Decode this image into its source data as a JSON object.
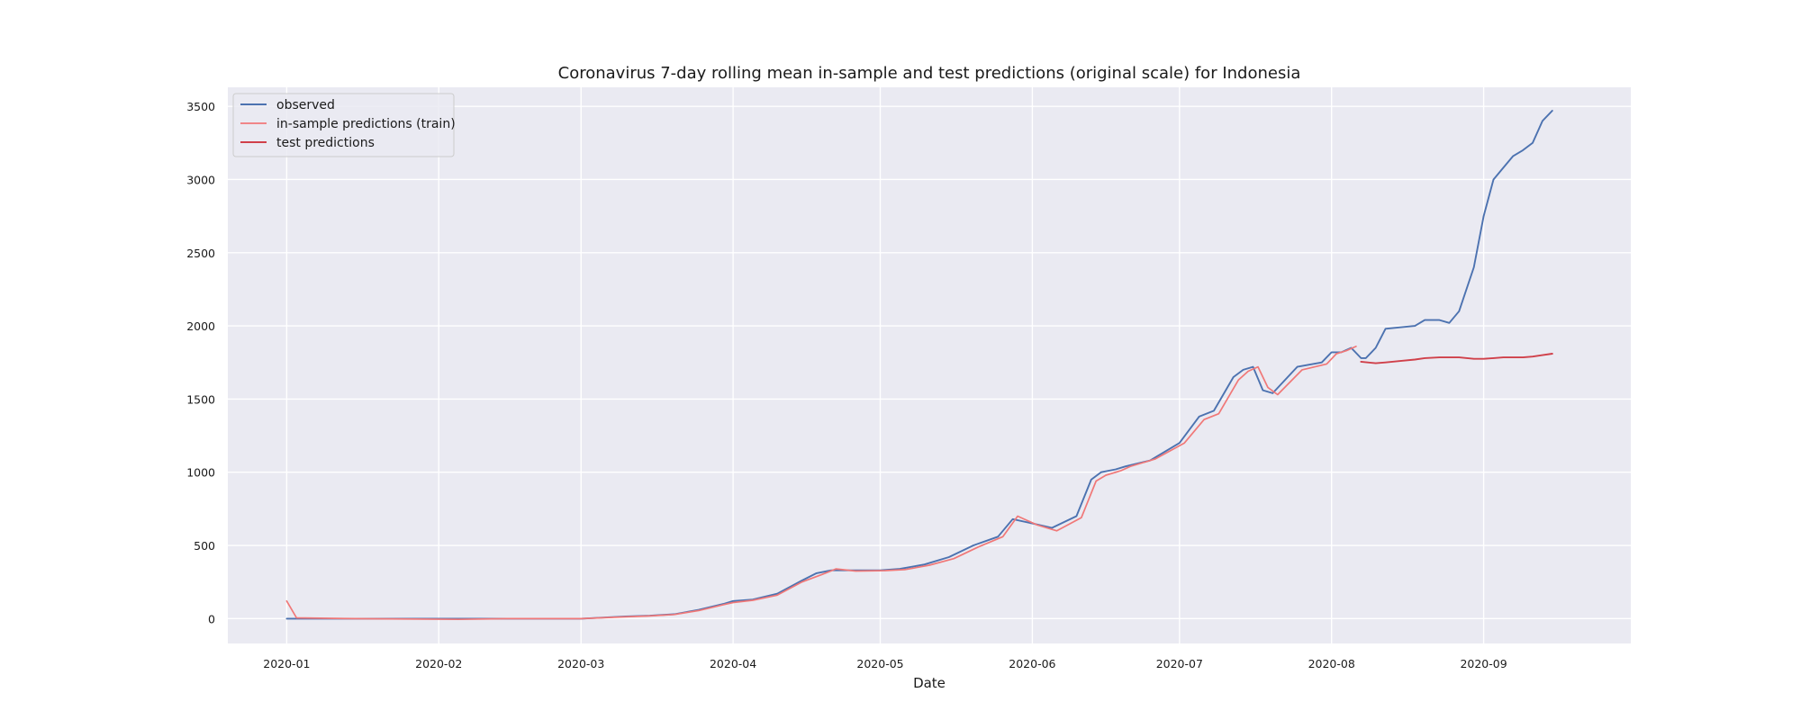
{
  "chart_data": {
    "type": "line",
    "title": "Coronavirus 7-day rolling mean in-sample and test predictions (original scale) for Indonesia",
    "xlabel": "Date",
    "ylabel": "",
    "x_ticks": [
      "2020-01",
      "2020-02",
      "2020-03",
      "2020-04",
      "2020-05",
      "2020-06",
      "2020-07",
      "2020-08",
      "2020-09"
    ],
    "y_ticks": [
      "0",
      "500",
      "1000",
      "1500",
      "2000",
      "2500",
      "3000",
      "3500"
    ],
    "xlim": [
      "2019-12-20",
      "2020-10-01"
    ],
    "ylim": [
      -170,
      3630
    ],
    "grid": true,
    "legend_position": "top-left",
    "colors": {
      "background": "#eaeaf2",
      "grid": "#ffffff",
      "observed": "#4c72b0",
      "train": "#f07878",
      "test": "#d0404a"
    },
    "series": [
      {
        "name": "observed",
        "x": [
          "2020-01-01",
          "2020-01-15",
          "2020-02-01",
          "2020-02-15",
          "2020-03-01",
          "2020-03-10",
          "2020-03-15",
          "2020-03-20",
          "2020-03-25",
          "2020-03-30",
          "2020-04-01",
          "2020-04-05",
          "2020-04-10",
          "2020-04-15",
          "2020-04-18",
          "2020-04-21",
          "2020-04-25",
          "2020-05-01",
          "2020-05-05",
          "2020-05-10",
          "2020-05-15",
          "2020-05-20",
          "2020-05-25",
          "2020-05-28",
          "2020-06-01",
          "2020-06-05",
          "2020-06-10",
          "2020-06-13",
          "2020-06-15",
          "2020-06-18",
          "2020-06-20",
          "2020-06-25",
          "2020-07-01",
          "2020-07-05",
          "2020-07-08",
          "2020-07-12",
          "2020-07-14",
          "2020-07-16",
          "2020-07-18",
          "2020-07-20",
          "2020-07-25",
          "2020-07-30",
          "2020-08-01",
          "2020-08-03",
          "2020-08-05",
          "2020-08-07",
          "2020-08-08",
          "2020-08-10",
          "2020-08-12",
          "2020-08-15",
          "2020-08-18",
          "2020-08-20",
          "2020-08-23",
          "2020-08-25",
          "2020-08-27",
          "2020-08-30",
          "2020-09-01",
          "2020-09-03",
          "2020-09-05",
          "2020-09-07",
          "2020-09-09",
          "2020-09-11",
          "2020-09-13",
          "2020-09-15"
        ],
        "y": [
          0,
          0,
          0,
          0,
          0,
          15,
          20,
          30,
          60,
          100,
          120,
          130,
          170,
          260,
          310,
          330,
          330,
          330,
          340,
          370,
          420,
          500,
          560,
          680,
          650,
          620,
          700,
          950,
          1000,
          1020,
          1040,
          1080,
          1200,
          1380,
          1420,
          1650,
          1700,
          1720,
          1560,
          1540,
          1720,
          1750,
          1820,
          1820,
          1850,
          1780,
          1780,
          1850,
          1980,
          1990,
          2000,
          2040,
          2040,
          2020,
          2100,
          2400,
          2750,
          3000,
          3080,
          3160,
          3200,
          3250,
          3400,
          3470
        ]
      },
      {
        "name": "in-sample predictions (train)",
        "x": [
          "2020-01-01",
          "2020-01-03",
          "2020-01-15",
          "2020-02-05",
          "2020-02-15",
          "2020-03-01",
          "2020-03-10",
          "2020-03-15",
          "2020-03-20",
          "2020-03-25",
          "2020-03-30",
          "2020-04-01",
          "2020-04-05",
          "2020-04-10",
          "2020-04-15",
          "2020-04-19",
          "2020-04-22",
          "2020-04-26",
          "2020-05-02",
          "2020-05-06",
          "2020-05-11",
          "2020-05-16",
          "2020-05-21",
          "2020-05-26",
          "2020-05-29",
          "2020-06-02",
          "2020-06-06",
          "2020-06-11",
          "2020-06-14",
          "2020-06-16",
          "2020-06-19",
          "2020-06-21",
          "2020-06-26",
          "2020-07-02",
          "2020-07-06",
          "2020-07-09",
          "2020-07-13",
          "2020-07-15",
          "2020-07-17",
          "2020-07-19",
          "2020-07-21",
          "2020-07-26",
          "2020-07-31",
          "2020-08-02",
          "2020-08-04",
          "2020-08-06"
        ],
        "y": [
          120,
          5,
          0,
          -5,
          0,
          0,
          12,
          18,
          28,
          55,
          95,
          110,
          125,
          160,
          250,
          300,
          340,
          325,
          328,
          335,
          365,
          410,
          490,
          560,
          700,
          640,
          600,
          690,
          940,
          980,
          1010,
          1040,
          1090,
          1200,
          1360,
          1400,
          1630,
          1690,
          1720,
          1580,
          1530,
          1700,
          1740,
          1810,
          1830,
          1860
        ]
      },
      {
        "name": "test predictions",
        "x": [
          "2020-08-07",
          "2020-08-10",
          "2020-08-12",
          "2020-08-15",
          "2020-08-18",
          "2020-08-20",
          "2020-08-23",
          "2020-08-25",
          "2020-08-27",
          "2020-08-30",
          "2020-09-01",
          "2020-09-03",
          "2020-09-05",
          "2020-09-07",
          "2020-09-09",
          "2020-09-11",
          "2020-09-13",
          "2020-09-15"
        ],
        "y": [
          1755,
          1745,
          1750,
          1760,
          1770,
          1780,
          1785,
          1785,
          1785,
          1775,
          1775,
          1780,
          1785,
          1785,
          1785,
          1790,
          1800,
          1810
        ]
      }
    ]
  }
}
